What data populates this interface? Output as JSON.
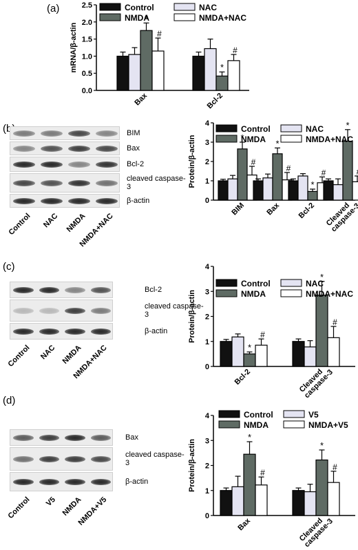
{
  "panels": {
    "a": {
      "letter": "(a)"
    },
    "b": {
      "letter": "(b)",
      "blot_rows": [
        "BIM",
        "Bax",
        "Bcl-2",
        "cleaved caspase-3",
        "β-actin"
      ],
      "lanes": [
        "Control",
        "NAC",
        "NMDA",
        "NMDA+NAC"
      ]
    },
    "c": {
      "letter": "(c)",
      "blot_rows": [
        "Bcl-2",
        "cleaved caspase-3",
        "β-actin"
      ],
      "lanes": [
        "Control",
        "NAC",
        "NMDA",
        "NMDA+NAC"
      ]
    },
    "d": {
      "letter": "(d)",
      "blot_rows": [
        "Bax",
        "cleaved caspase-3",
        "β-actin"
      ],
      "lanes": [
        "Control",
        "V5",
        "NMDA",
        "NMDA+V5"
      ]
    }
  },
  "colors": {
    "Control": "#111111",
    "NAC": "#e4e4f2",
    "V5": "#e4e4f2",
    "NMDA": "#5f6b64",
    "NMDA+NAC": "#ffffff",
    "NMDA+V5": "#ffffff"
  },
  "chart_data": [
    {
      "id": "a",
      "type": "bar",
      "ylabel": "mRNA/β-actin",
      "ylim": [
        0,
        2.5
      ],
      "yticks": [
        0.0,
        0.5,
        1.0,
        1.5,
        2.0,
        2.5
      ],
      "categories": [
        "Bax",
        "Bcl-2"
      ],
      "series": [
        {
          "name": "Control",
          "values": [
            1.0,
            1.0
          ],
          "errors": [
            0.12,
            0.12
          ],
          "marks": [
            "",
            ""
          ]
        },
        {
          "name": "NAC",
          "values": [
            1.05,
            1.22
          ],
          "errors": [
            0.2,
            0.28
          ],
          "marks": [
            "",
            ""
          ]
        },
        {
          "name": "NMDA",
          "values": [
            1.75,
            0.42
          ],
          "errors": [
            0.22,
            0.12
          ],
          "marks": [
            "*",
            "*"
          ]
        },
        {
          "name": "NMDA+NAC",
          "values": [
            1.15,
            0.87
          ],
          "errors": [
            0.38,
            0.18
          ],
          "marks": [
            "#",
            "#"
          ]
        }
      ]
    },
    {
      "id": "b",
      "type": "bar",
      "ylabel": "Protein/β-actin",
      "ylim": [
        0,
        4
      ],
      "yticks": [
        0,
        1,
        2,
        3,
        4
      ],
      "categories": [
        "BIM",
        "Bax",
        "Bcl-2",
        "Cleaved caspase-3"
      ],
      "series": [
        {
          "name": "Control",
          "values": [
            1.0,
            1.0,
            1.0,
            1.0
          ],
          "errors": [
            0.08,
            0.1,
            0.1,
            0.1
          ],
          "marks": [
            "",
            "",
            "",
            ""
          ]
        },
        {
          "name": "NAC",
          "values": [
            1.1,
            1.15,
            1.25,
            0.8
          ],
          "errors": [
            0.18,
            0.2,
            0.12,
            0.3
          ],
          "marks": [
            "",
            "",
            "",
            ""
          ]
        },
        {
          "name": "NMDA",
          "values": [
            2.65,
            2.4,
            0.45,
            3.05
          ],
          "errors": [
            0.35,
            0.3,
            0.12,
            0.6
          ],
          "marks": [
            "*",
            "*",
            "*",
            "*"
          ]
        },
        {
          "name": "NMDA+NAC",
          "values": [
            1.3,
            1.05,
            0.9,
            0.95
          ],
          "errors": [
            0.45,
            0.38,
            0.3,
            0.3
          ],
          "marks": [
            "#",
            "#",
            "#",
            "#"
          ]
        }
      ]
    },
    {
      "id": "c",
      "type": "bar",
      "ylabel": "Protein/β-actin",
      "ylim": [
        0,
        4
      ],
      "yticks": [
        0,
        1,
        2,
        3,
        4
      ],
      "categories": [
        "Bcl-2",
        "Cleaved caspase-3"
      ],
      "series": [
        {
          "name": "Control",
          "values": [
            1.0,
            1.0
          ],
          "errors": [
            0.08,
            0.1
          ],
          "marks": [
            "",
            ""
          ]
        },
        {
          "name": "NAC",
          "values": [
            1.18,
            0.78
          ],
          "errors": [
            0.12,
            0.25
          ],
          "marks": [
            "",
            ""
          ]
        },
        {
          "name": "NMDA",
          "values": [
            0.5,
            2.85
          ],
          "errors": [
            0.08,
            0.55
          ],
          "marks": [
            "*",
            "*"
          ]
        },
        {
          "name": "NMDA+NAC",
          "values": [
            0.85,
            1.15
          ],
          "errors": [
            0.25,
            0.45
          ],
          "marks": [
            "#",
            "#"
          ]
        }
      ]
    },
    {
      "id": "d",
      "type": "bar",
      "ylabel": "Protein/β-actin",
      "ylim": [
        0,
        4
      ],
      "yticks": [
        0,
        1,
        2,
        3,
        4
      ],
      "categories": [
        "Bax",
        "Cleaved caspase-3"
      ],
      "series": [
        {
          "name": "Control",
          "values": [
            1.0,
            1.0
          ],
          "errors": [
            0.1,
            0.1
          ],
          "marks": [
            "",
            ""
          ]
        },
        {
          "name": "V5",
          "values": [
            1.15,
            0.95
          ],
          "errors": [
            0.42,
            0.3
          ],
          "marks": [
            "",
            ""
          ]
        },
        {
          "name": "NMDA",
          "values": [
            2.45,
            2.22
          ],
          "errors": [
            0.5,
            0.4
          ],
          "marks": [
            "*",
            "*"
          ]
        },
        {
          "name": "NMDA+V5",
          "values": [
            1.22,
            1.32
          ],
          "errors": [
            0.32,
            0.45
          ],
          "marks": [
            "#",
            "#"
          ]
        }
      ]
    }
  ]
}
